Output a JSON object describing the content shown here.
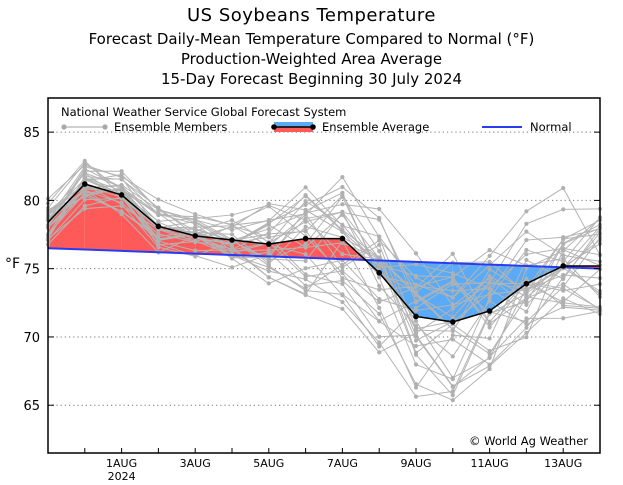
{
  "chart_data": {
    "type": "line",
    "title": "US Soybeans Temperature",
    "subtitle_lines": [
      "Forecast Daily-Mean Temperature Compared to Normal (°F)",
      "Production-Weighted Area Average",
      "15-Day Forecast Beginning 30 July 2024"
    ],
    "model_label": "National Weather Service Global Forecast System",
    "legend": {
      "members": "Ensemble Members",
      "average": "Ensemble Average",
      "normal": "Normal"
    },
    "ylabel": "°F",
    "ylim": [
      61.5,
      87.5
    ],
    "xlim": [
      -1,
      14
    ],
    "yticks": [
      65,
      70,
      75,
      80,
      85
    ],
    "xticks": [
      {
        "x": 1,
        "label": "1AUG",
        "sub": "2024"
      },
      {
        "x": 3,
        "label": "3AUG",
        "sub": ""
      },
      {
        "x": 5,
        "label": "5AUG",
        "sub": ""
      },
      {
        "x": 7,
        "label": "7AUG",
        "sub": ""
      },
      {
        "x": 9,
        "label": "9AUG",
        "sub": ""
      },
      {
        "x": 11,
        "label": "11AUG",
        "sub": ""
      },
      {
        "x": 13,
        "label": "13AUG",
        "sub": ""
      }
    ],
    "x": [
      -1,
      0,
      1,
      2,
      3,
      4,
      5,
      6,
      7,
      8,
      9,
      10,
      11,
      12,
      13,
      14
    ],
    "ensemble_average": [
      78.4,
      81.2,
      80.4,
      78.1,
      77.4,
      77.1,
      76.8,
      77.2,
      77.2,
      74.7,
      71.5,
      71.1,
      71.9,
      73.9,
      75.2,
      75.2
    ],
    "normal": [
      76.5,
      76.4,
      76.3,
      76.2,
      76.1,
      76.0,
      75.9,
      75.8,
      75.7,
      75.6,
      75.5,
      75.4,
      75.3,
      75.2,
      75.1,
      75.0
    ],
    "copyright": "© World Ag Weather",
    "colors": {
      "above": "#ff5a5a",
      "below": "#5aaaf5",
      "normal": "#2a3cf0",
      "members": "#b4b4b4",
      "average": "#000000"
    }
  }
}
